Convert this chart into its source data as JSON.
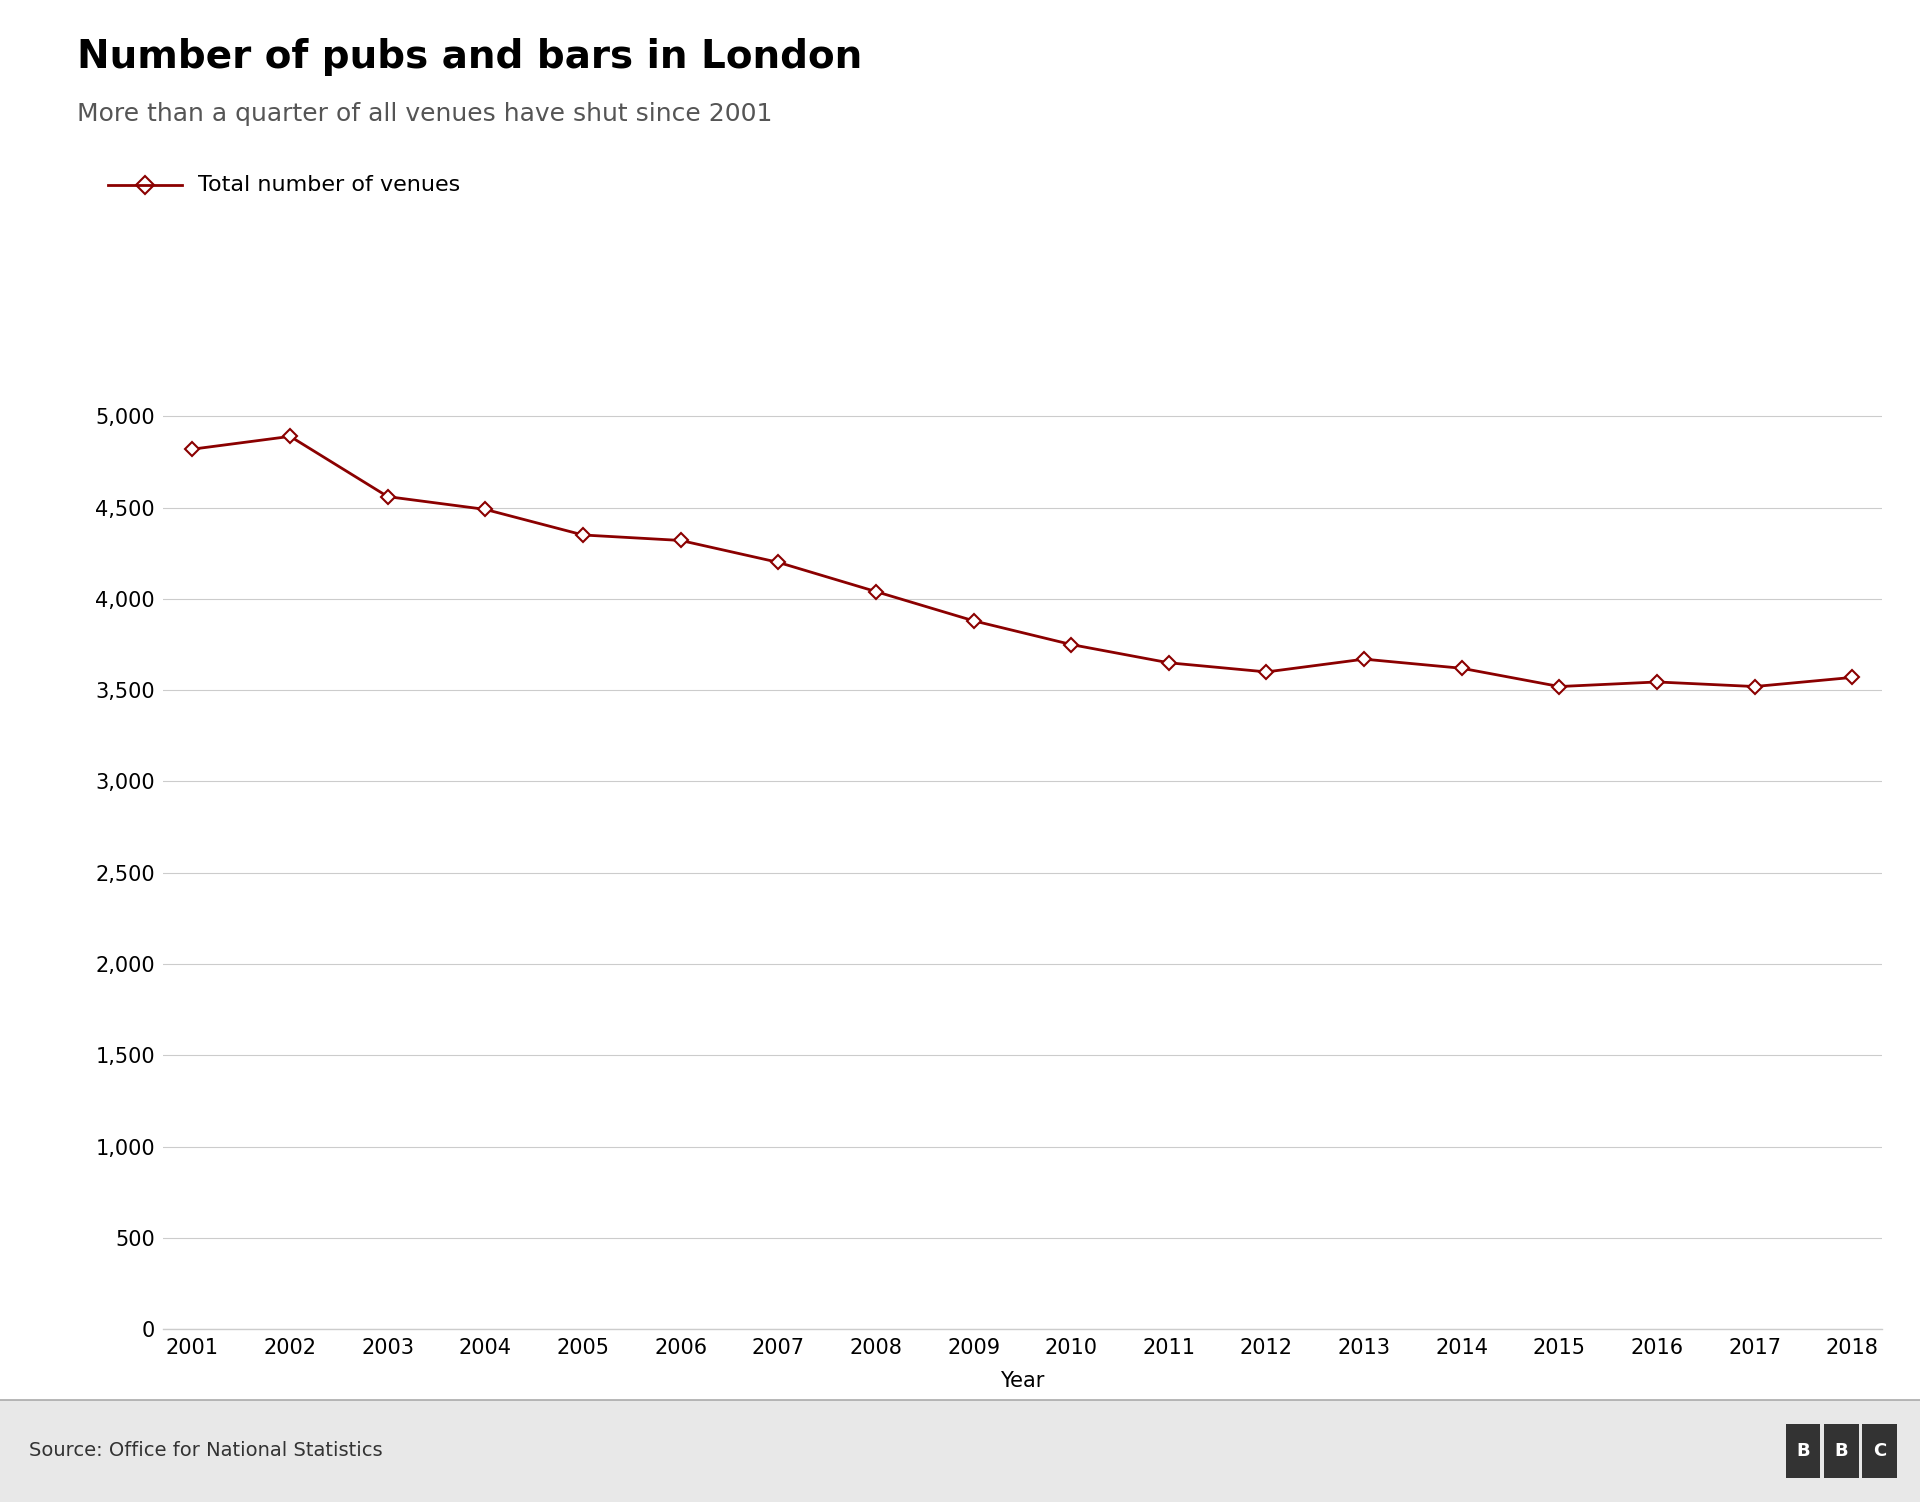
{
  "title": "Number of pubs and bars in London",
  "subtitle": "More than a quarter of all venues have shut since 2001",
  "legend_label": "Total number of venues",
  "xlabel": "Year",
  "source": "Source: Office for National Statistics",
  "bbc_text": "BBC",
  "years": [
    2001,
    2002,
    2003,
    2004,
    2005,
    2006,
    2007,
    2008,
    2009,
    2010,
    2011,
    2012,
    2013,
    2014,
    2015,
    2016,
    2017,
    2018
  ],
  "values": [
    4820,
    4890,
    4560,
    4490,
    4350,
    4320,
    4200,
    4040,
    3880,
    3750,
    3650,
    3600,
    3670,
    3620,
    3520,
    3545,
    3520,
    3570
  ],
  "line_color": "#8B0000",
  "marker_style": "D",
  "marker_size": 7,
  "line_width": 2,
  "ylim": [
    0,
    5100
  ],
  "yticks": [
    0,
    500,
    1000,
    1500,
    2000,
    2500,
    3000,
    3500,
    4000,
    4500,
    5000
  ],
  "background_color": "#ffffff",
  "grid_color": "#cccccc",
  "title_fontsize": 28,
  "subtitle_fontsize": 18,
  "legend_fontsize": 16,
  "axis_label_fontsize": 15,
  "tick_fontsize": 15,
  "source_fontsize": 14,
  "footer_line_color": "#aaaaaa",
  "footer_bg_color": "#e8e8e8"
}
